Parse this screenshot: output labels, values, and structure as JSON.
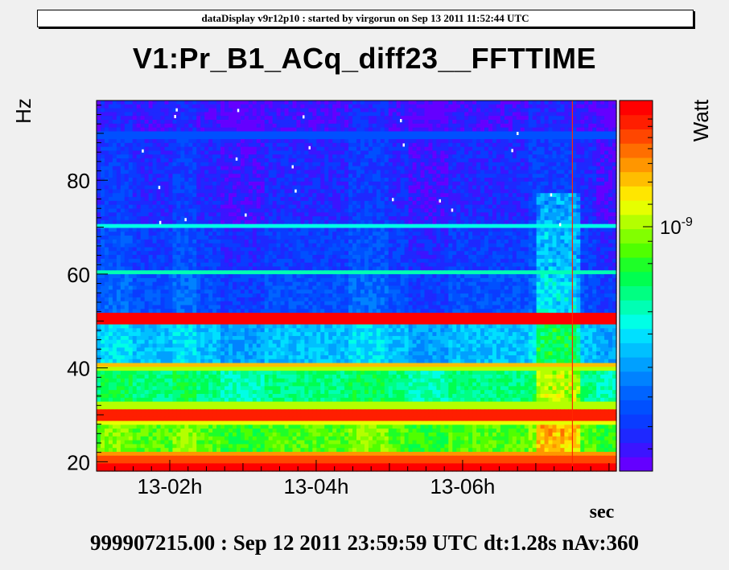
{
  "header": {
    "text": "dataDisplay v9r12p10 : started by virgorun on Sep 13 2011 11:52:44 UTC"
  },
  "footer": {
    "text": "999907215.00 : Sep 12 2011 23:59:59 UTC dt:1.28s nAv:360"
  },
  "chart_data": {
    "type": "heatmap",
    "title": "V1:Pr_B1_ACq_diff23__FFTTIME",
    "xlabel": "sec",
    "ylabel": "Hz",
    "zlabel": "Watt",
    "x_tick_labels": [
      "13-02h",
      "13-04h",
      "13-06h"
    ],
    "x_range_hours": [
      0.0,
      7.1
    ],
    "x_tick_positions_hours": [
      1.0,
      3.0,
      5.0
    ],
    "y_ticks": [
      20,
      40,
      60,
      80
    ],
    "ylim": [
      18,
      97
    ],
    "z_scale": "log",
    "z_tick_labels": [
      {
        "base": "10",
        "exp": "-9"
      }
    ],
    "colors": {
      "palette": [
        "#6400ff",
        "#3c14ff",
        "#1e28ff",
        "#0a3cff",
        "#0050ff",
        "#0064ff",
        "#0082ff",
        "#00a0ff",
        "#00c0ff",
        "#00e0ff",
        "#00ffe6",
        "#00ffb4",
        "#00ff82",
        "#00ff50",
        "#1eff28",
        "#50ff00",
        "#82ff00",
        "#b4ff00",
        "#e6ff00",
        "#ffe600",
        "#ffbe00",
        "#ff9600",
        "#ff6e00",
        "#ff4600",
        "#ff1e00",
        "#ff0000"
      ],
      "background": "#f0f0f0",
      "spike_line": "#ff2800"
    },
    "bands": [
      {
        "y0": 18,
        "y1": 20,
        "level": 25
      },
      {
        "y0": 20,
        "y1": 21,
        "level": 23
      },
      {
        "y0": 21,
        "y1": 22,
        "level": 21
      },
      {
        "y0": 22,
        "y1": 28,
        "level": 15
      },
      {
        "y0": 28,
        "y1": 29,
        "level": 18
      },
      {
        "y0": 29,
        "y1": 31,
        "level": 24
      },
      {
        "y0": 31,
        "y1": 33,
        "level": 17
      },
      {
        "y0": 33,
        "y1": 39,
        "level": 12
      },
      {
        "y0": 39,
        "y1": 40,
        "level": 17
      },
      {
        "y0": 40,
        "y1": 41,
        "level": 20
      },
      {
        "y0": 41,
        "y1": 49,
        "level": 8
      },
      {
        "y0": 49,
        "y1": 51.5,
        "level": 25
      },
      {
        "y0": 51.5,
        "y1": 60,
        "level": 4
      },
      {
        "y0": 60,
        "y1": 61.2,
        "level": 11
      },
      {
        "y0": 61.2,
        "y1": 69.5,
        "level": 3
      },
      {
        "y0": 69.5,
        "y1": 71,
        "level": 10
      },
      {
        "y0": 71,
        "y1": 89,
        "level": 2
      },
      {
        "y0": 89,
        "y1": 90.5,
        "level": 4
      },
      {
        "y0": 90.5,
        "y1": 97,
        "level": 1
      }
    ],
    "excess_region": {
      "x0": 6.0,
      "x1": 6.6,
      "y0": 18,
      "y1": 77,
      "boost": 4
    },
    "spike_x_hours": 6.5,
    "seed": 7
  }
}
